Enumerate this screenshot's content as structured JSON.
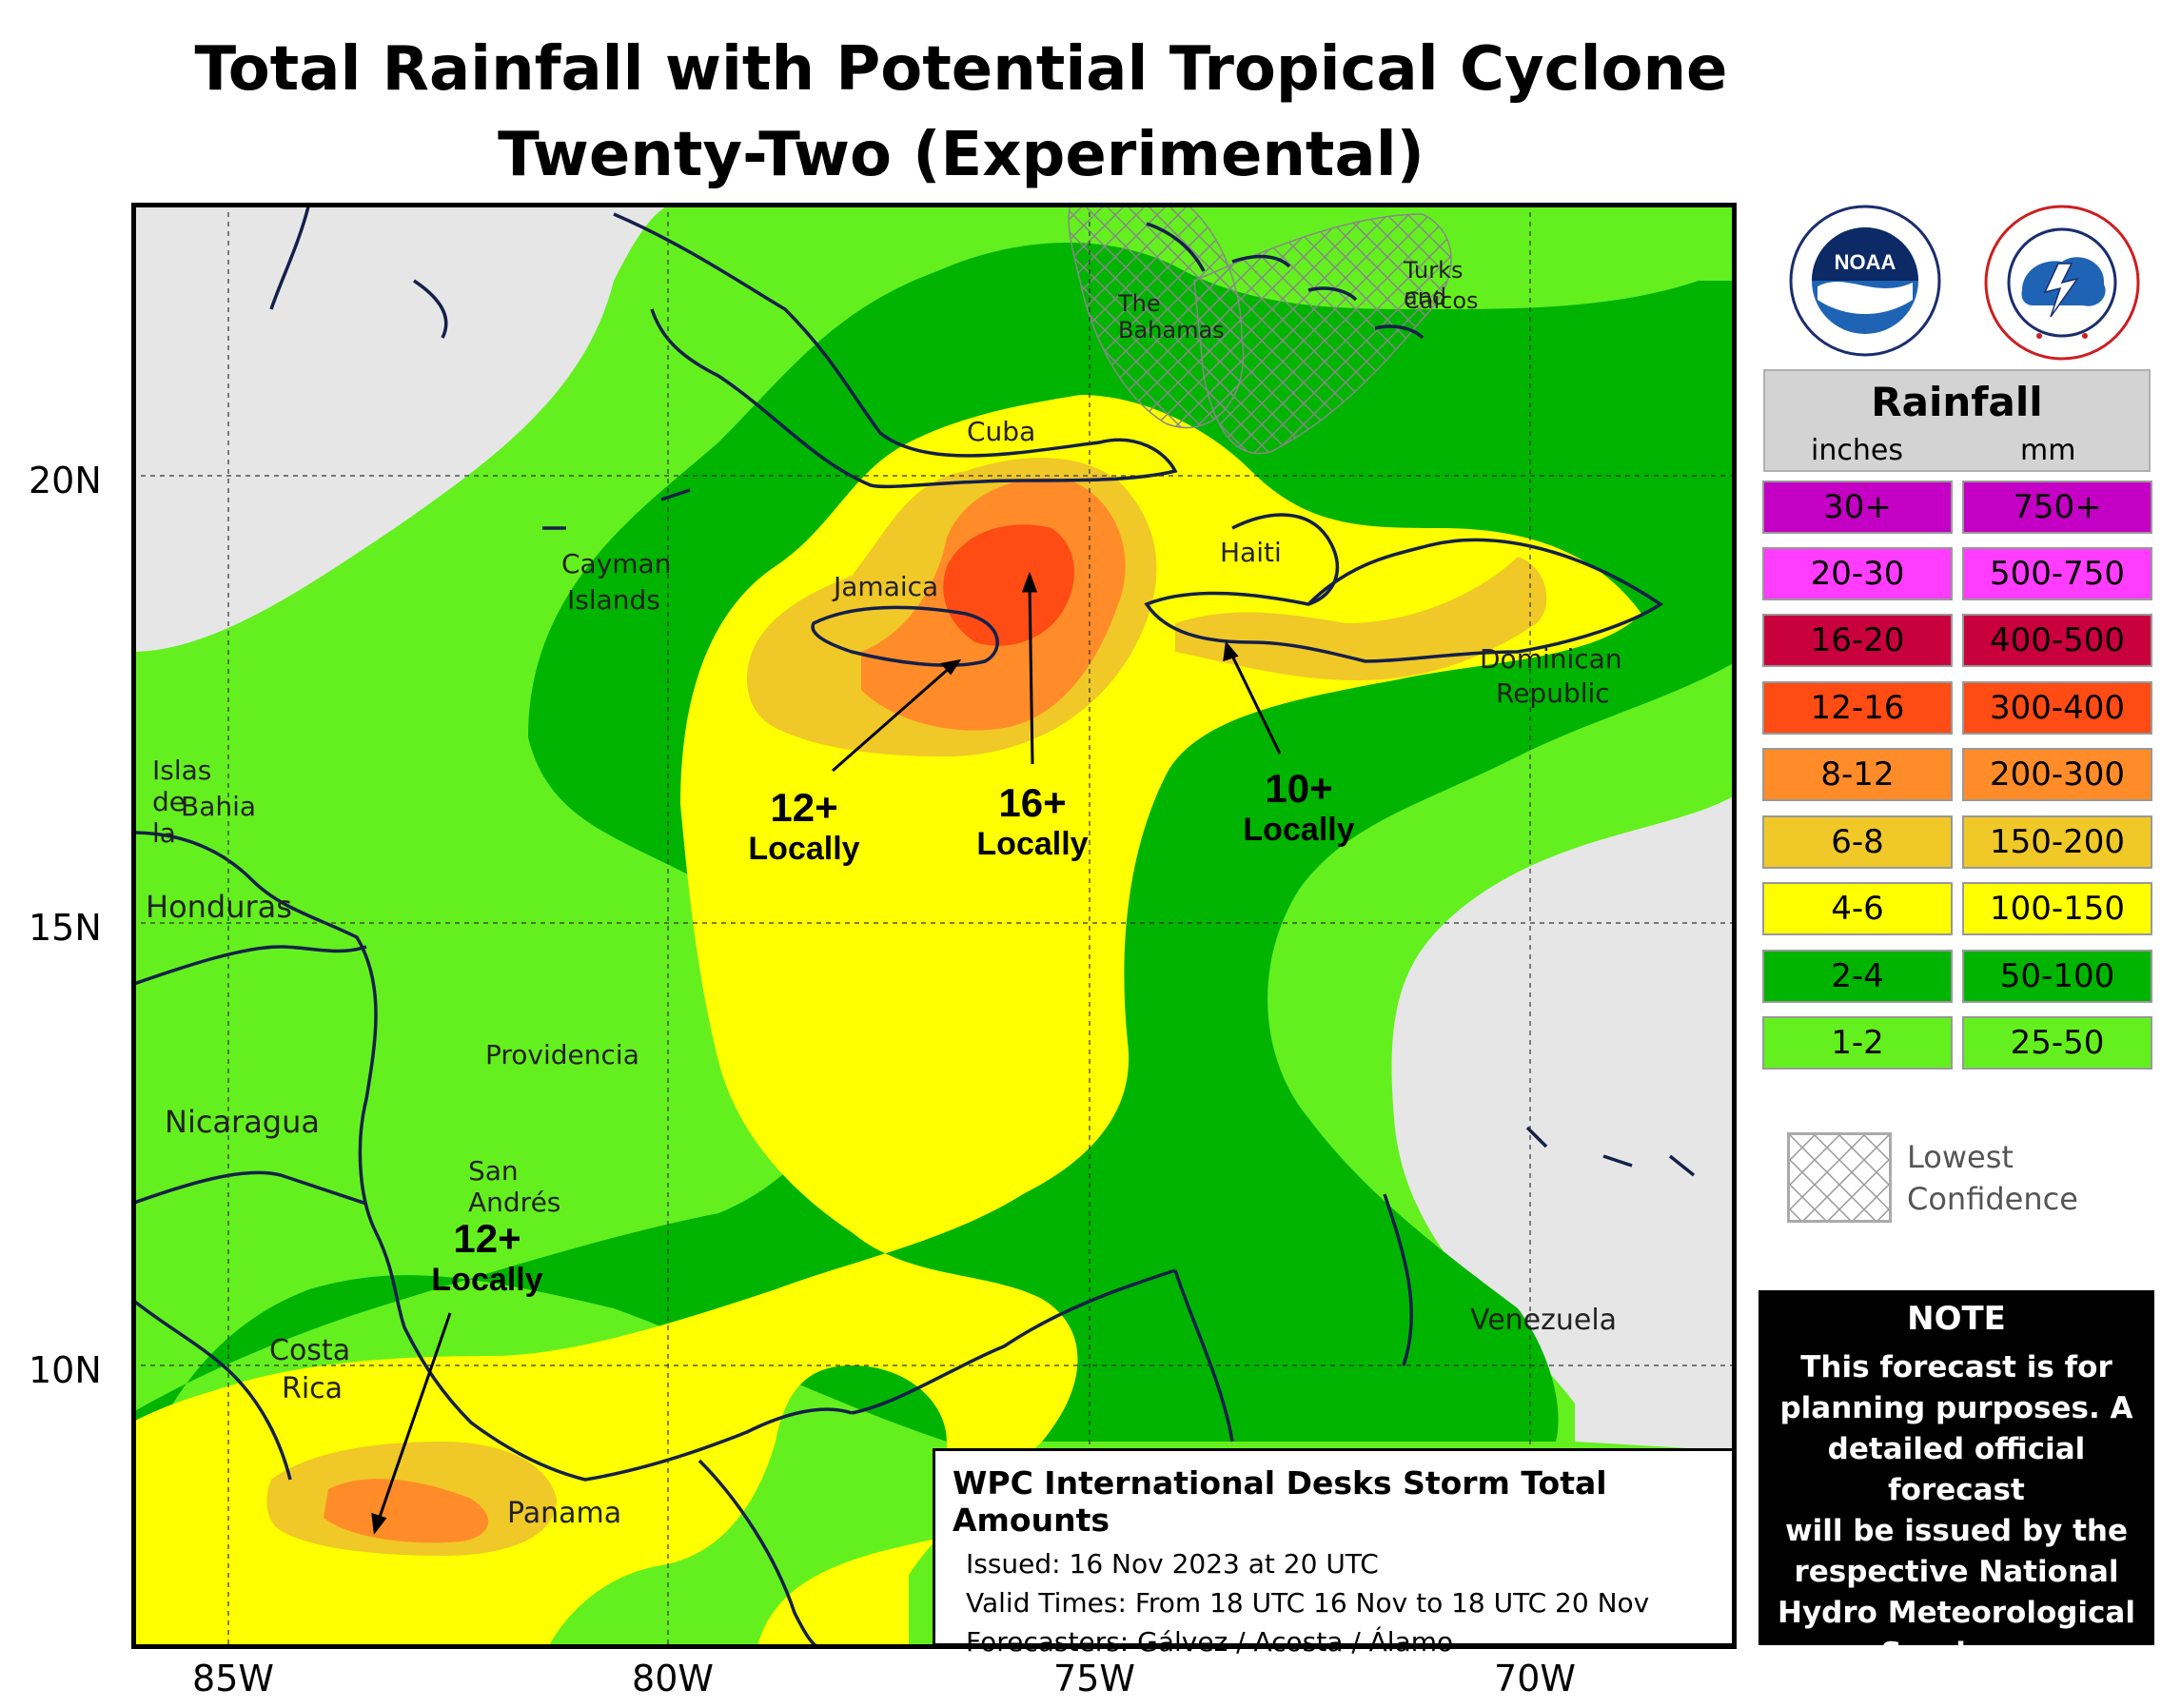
{
  "title": {
    "line1": "Total Rainfall with Potential Tropical Cyclone",
    "line2": "Twenty-Two (Experimental)"
  },
  "axes": {
    "lat_labels": [
      "20N",
      "15N",
      "10N"
    ],
    "lon_labels": [
      "85W",
      "80W",
      "75W",
      "70W"
    ]
  },
  "place_labels": {
    "cuba": "Cuba",
    "bahamas": "The Bahamas",
    "turks_caicos_1": "Turks and",
    "turks_caicos_2": "Caicos",
    "cayman_1": "Cayman",
    "cayman_2": "Islands",
    "jamaica": "Jamaica",
    "haiti": "Haiti",
    "dominican_1": "Dominican",
    "dominican_2": "Republic",
    "islas_1": "Islas de la",
    "islas_2": "Bahia",
    "honduras": "Honduras",
    "providencia": "Providencia",
    "nicaragua": "Nicaragua",
    "san_andres": "San Andrés",
    "costa_rica_1": "Costa",
    "costa_rica_2": "Rica",
    "panama": "Panama",
    "venezuela": "Venezuela"
  },
  "callouts": {
    "jamaica_amount": "12+",
    "jamaica_local": "Locally",
    "center_amount": "16+",
    "center_local": "Locally",
    "haiti_amount": "10+",
    "haiti_local": "Locally",
    "panama_amount": "12+",
    "panama_local": "Locally"
  },
  "info_box": {
    "title": "WPC International Desks Storm Total Amounts",
    "issued": "Issued:  16 Nov 2023 at 20 UTC",
    "valid": "Valid Times:  From 18 UTC 16 Nov to 18 UTC 20 Nov",
    "forecasters": "Forecasters: Gálvez / Acosta / Álamo"
  },
  "logos": {
    "noaa_text": "NOAA",
    "nws_ring": "NATIONAL WEATHER SERVICE"
  },
  "legend": {
    "title": "Rainfall",
    "inches_header": "inches",
    "mm_header": "mm",
    "rows": [
      {
        "inches": "30+",
        "mm": "750+",
        "color": "#c300c3"
      },
      {
        "inches": "20-30",
        "mm": "500-750",
        "color": "#ff3cff"
      },
      {
        "inches": "16-20",
        "mm": "400-500",
        "color": "#c8003c"
      },
      {
        "inches": "12-16",
        "mm": "300-400",
        "color": "#ff4b14"
      },
      {
        "inches": "8-12",
        "mm": "200-300",
        "color": "#ff8c28"
      },
      {
        "inches": "6-8",
        "mm": "150-200",
        "color": "#f0c828"
      },
      {
        "inches": "4-6",
        "mm": "100-150",
        "color": "#ffff00"
      },
      {
        "inches": "2-4",
        "mm": "50-100",
        "color": "#00b400"
      },
      {
        "inches": "1-2",
        "mm": "25-50",
        "color": "#64f01e"
      }
    ]
  },
  "confidence_label_1": "Lowest",
  "confidence_label_2": "Confidence",
  "note": {
    "title": "NOTE",
    "line1": "This forecast is for",
    "line2": "planning purposes. A",
    "line3": "detailed official forecast",
    "line4": "will be issued by the",
    "line5": "respective National",
    "line6": "Hydro Meteorological",
    "line7": "Services."
  }
}
